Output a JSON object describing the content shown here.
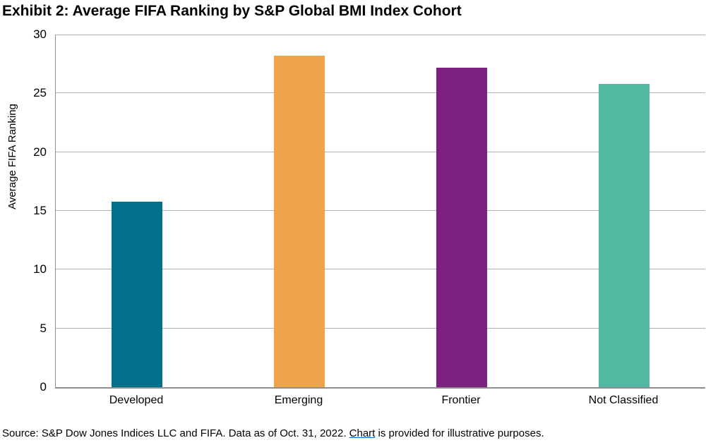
{
  "chart_data": {
    "type": "bar",
    "title": "Exhibit 2: Average FIFA Ranking by S&P Global BMI Index Cohort",
    "ylabel": "Average FIFA Ranking",
    "xlabel": "",
    "categories": [
      "Developed",
      "Emerging",
      "Frontier",
      "Not Classified"
    ],
    "values": [
      15.8,
      28.2,
      27.2,
      25.8
    ],
    "bar_colors": [
      "#00708C",
      "#F0A44A",
      "#7A2182",
      "#53B8A1"
    ],
    "ylim": [
      0,
      30
    ],
    "yticks": [
      0,
      5,
      10,
      15,
      20,
      25,
      30
    ],
    "grid": true,
    "legend": false,
    "axis_color": "#8f8f8f",
    "gridline_color": "#b3b3b3"
  },
  "footer": {
    "prefix": "Source: S&P Dow Jones Indices LLC and FIFA. Data as of Oct. 31, 2022. ",
    "link_text": "Chart",
    "suffix": " is provided for illustrative purposes."
  }
}
